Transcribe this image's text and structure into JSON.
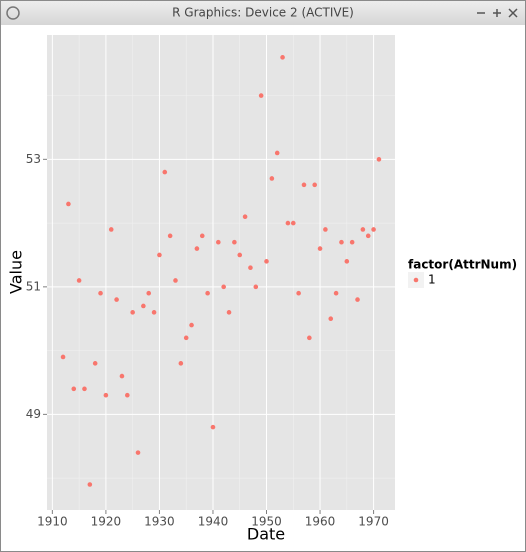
{
  "window": {
    "title": "R Graphics: Device 2 (ACTIVE)"
  },
  "chart_data": {
    "type": "scatter",
    "x_label": "Date",
    "y_label": "Value",
    "x": [
      1912,
      1913,
      1914,
      1915,
      1916,
      1917,
      1918,
      1919,
      1920,
      1921,
      1922,
      1923,
      1924,
      1925,
      1926,
      1927,
      1928,
      1929,
      1930,
      1931,
      1932,
      1933,
      1934,
      1935,
      1936,
      1937,
      1938,
      1939,
      1940,
      1941,
      1942,
      1943,
      1944,
      1945,
      1946,
      1947,
      1948,
      1949,
      1950,
      1951,
      1952,
      1953,
      1954,
      1955,
      1956,
      1957,
      1958,
      1959,
      1960,
      1961,
      1962,
      1963,
      1964,
      1965,
      1966,
      1967,
      1968,
      1969,
      1970,
      1971
    ],
    "series": [
      {
        "name": "1",
        "color": "#F8766D",
        "values": [
          49.9,
          52.3,
          49.4,
          51.1,
          49.4,
          47.9,
          49.8,
          50.9,
          49.3,
          51.9,
          50.8,
          49.6,
          49.3,
          50.6,
          48.4,
          50.7,
          50.9,
          50.6,
          51.5,
          52.8,
          51.8,
          51.1,
          49.8,
          50.2,
          50.4,
          51.6,
          51.8,
          50.9,
          48.8,
          51.7,
          51.0,
          50.6,
          51.7,
          51.5,
          52.1,
          51.3,
          51.0,
          54.0,
          51.4,
          52.7,
          53.1,
          54.6,
          52.0,
          52.0,
          50.9,
          52.6,
          50.2,
          52.6,
          51.6,
          51.9,
          50.5,
          50.9,
          51.7,
          51.4,
          51.7,
          50.8,
          51.9,
          51.8,
          51.9,
          53.0
        ]
      }
    ],
    "legend_title": "factor(AttrNum)",
    "legend_position": "right",
    "xlim": [
      1909,
      1974
    ],
    "ylim": [
      47.5,
      54.95
    ],
    "xticks": [
      1910,
      1920,
      1930,
      1940,
      1950,
      1960,
      1970
    ],
    "yticks": [
      49,
      51,
      53
    ],
    "minor_xticks": [
      1915,
      1925,
      1935,
      1945,
      1955,
      1965
    ],
    "minor_yticks": [
      48,
      50,
      52,
      54
    ],
    "grid": true
  }
}
